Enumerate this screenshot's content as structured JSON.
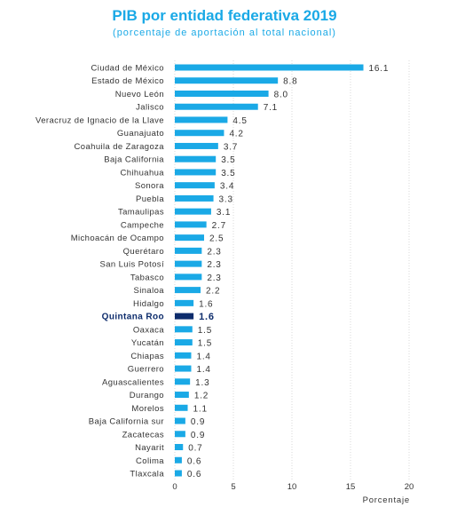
{
  "chart_data": {
    "type": "bar",
    "orientation": "horizontal",
    "title": "PIB por entidad federativa 2019",
    "subtitle": "(porcentaje de aportación al total nacional)",
    "xlabel": "Porcentaje",
    "xlim": [
      0,
      20
    ],
    "xticks": [
      "0",
      "5",
      "10",
      "15",
      "20"
    ],
    "grid": "vertical",
    "bar_color": "#1aa9e6",
    "highlight_color": "#0d2c6c",
    "highlight_category": "Quintana Roo",
    "categories": [
      "Ciudad de México",
      "Estado de México",
      "Nuevo León",
      "Jalisco",
      "Veracruz de Ignacio de la Llave",
      "Guanajuato",
      "Coahuila de Zaragoza",
      "Baja California",
      "Chihuahua",
      "Sonora",
      "Puebla",
      "Tamaulipas",
      "Campeche",
      "Michoacán de Ocampo",
      "Querétaro",
      "San Luis Potosí",
      "Tabasco",
      "Sinaloa",
      "Hidalgo",
      "Quintana Roo",
      "Oaxaca",
      "Yucatán",
      "Chiapas",
      "Guerrero",
      "Aguascalientes",
      "Durango",
      "Morelos",
      "Baja California sur",
      "Zacatecas",
      "Nayarit",
      "Colima",
      "Tlaxcala"
    ],
    "values": [
      16.1,
      8.8,
      8.0,
      7.1,
      4.5,
      4.2,
      3.7,
      3.5,
      3.5,
      3.4,
      3.3,
      3.1,
      2.7,
      2.5,
      2.3,
      2.3,
      2.3,
      2.2,
      1.6,
      1.6,
      1.5,
      1.5,
      1.4,
      1.4,
      1.3,
      1.2,
      1.1,
      0.9,
      0.9,
      0.7,
      0.6,
      0.6
    ],
    "value_labels": [
      "16.1",
      "8.8",
      "8.0",
      "7.1",
      "4.5",
      "4.2",
      "3.7",
      "3.5",
      "3.5",
      "3.4",
      "3.3",
      "3.1",
      "2.7",
      "2.5",
      "2.3",
      "2.3",
      "2.3",
      "2.2",
      "1.6",
      "1.6",
      "1.5",
      "1.5",
      "1.4",
      "1.4",
      "1.3",
      "1.2",
      "1.1",
      "0.9",
      "0.9",
      "0.7",
      "0.6",
      "0.6"
    ]
  }
}
